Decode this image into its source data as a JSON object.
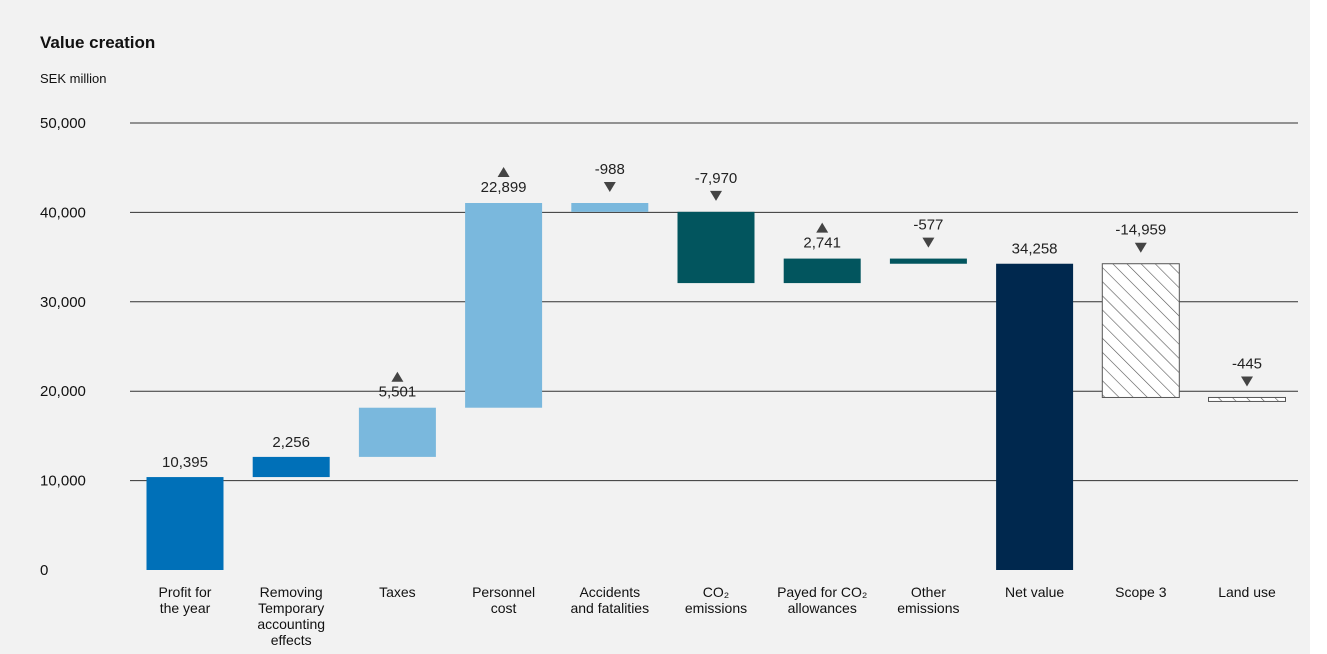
{
  "chart_data": {
    "type": "waterfall",
    "title": "Value creation",
    "unit_label": "SEK million",
    "ylim": [
      0,
      50000
    ],
    "yticks": [
      0,
      10000,
      20000,
      30000,
      40000,
      50000
    ],
    "ytick_labels": [
      "0",
      "10,000",
      "20,000",
      "30,000",
      "40,000",
      "50,000"
    ],
    "grid": true,
    "colors": {
      "grid": "#333333",
      "marker": "#444444",
      "hatch_stroke": "#555555",
      "hatch_fill": "#ffffff"
    },
    "bars": [
      {
        "category": [
          "Profit for",
          "the year"
        ],
        "value": 10395,
        "label": "10,395",
        "base": 0,
        "top": 10395,
        "color": "#0070b8",
        "marker": "none",
        "hatched": false
      },
      {
        "category": [
          "Removing",
          "Temporary",
          "accounting",
          "effects"
        ],
        "value": 2256,
        "label": "2,256",
        "base": 10395,
        "top": 12651,
        "color": "#0070b8",
        "marker": "none",
        "hatched": false
      },
      {
        "category": [
          "Taxes"
        ],
        "value": 5501,
        "label": "5,501",
        "base": 12651,
        "top": 18152,
        "color": "#7ab8dd",
        "marker": "up",
        "hatched": false
      },
      {
        "category": [
          "Personnel",
          "cost"
        ],
        "value": 22899,
        "label": "22,899",
        "base": 18152,
        "top": 41051,
        "color": "#7ab8dd",
        "marker": "up",
        "hatched": false
      },
      {
        "category": [
          "Accidents",
          "and fatalities"
        ],
        "value": -988,
        "label": "-988",
        "base": 40063,
        "top": 41051,
        "color": "#7ab8dd",
        "marker": "down",
        "hatched": false
      },
      {
        "category": [
          "CO₂",
          "emissions"
        ],
        "value": -7970,
        "label": "-7,970",
        "base": 32093,
        "top": 40063,
        "color": "#02555e",
        "marker": "down",
        "hatched": false
      },
      {
        "category": [
          "Payed for CO₂",
          "allowances"
        ],
        "value": 2741,
        "label": "2,741",
        "base": 32093,
        "top": 34834,
        "color": "#02555e",
        "marker": "up",
        "hatched": false
      },
      {
        "category": [
          "Other",
          "emissions"
        ],
        "value": -577,
        "label": "-577",
        "base": 34257,
        "top": 34834,
        "color": "#02555e",
        "marker": "down",
        "hatched": false
      },
      {
        "category": [
          "Net value"
        ],
        "value": 34258,
        "label": "34,258",
        "base": 0,
        "top": 34258,
        "color": "#00284e",
        "marker": "none",
        "hatched": false
      },
      {
        "category": [
          "Scope 3"
        ],
        "value": -14959,
        "label": "-14,959",
        "base": 19299,
        "top": 34258,
        "color": "#ffffff",
        "marker": "down",
        "hatched": true
      },
      {
        "category": [
          "Land use"
        ],
        "value": -445,
        "label": "-445",
        "base": 18854,
        "top": 19299,
        "color": "#ffffff",
        "marker": "down",
        "hatched": true
      }
    ]
  }
}
